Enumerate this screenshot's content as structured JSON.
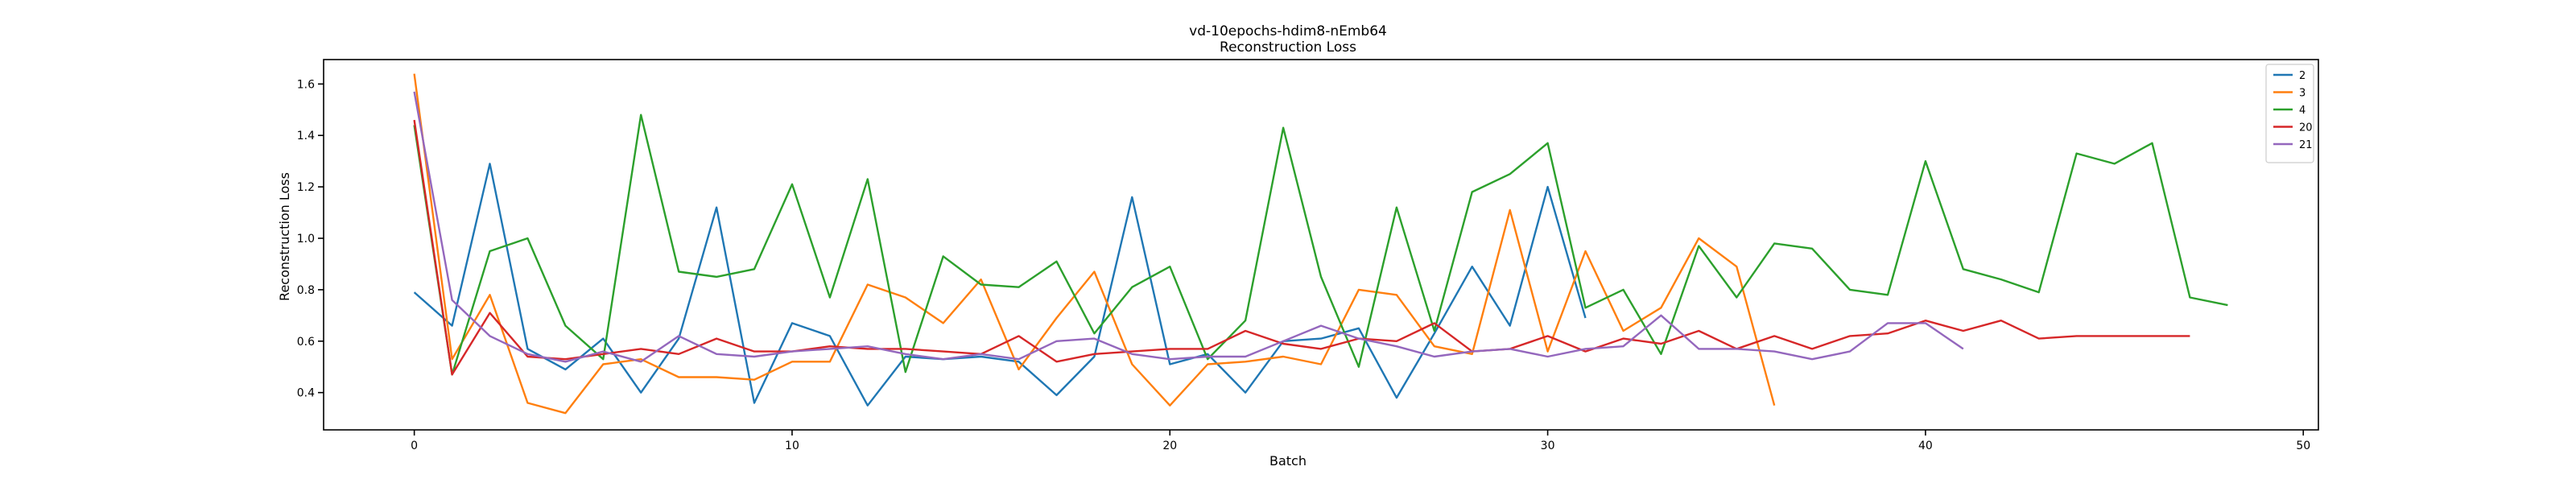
{
  "chart_data": {
    "type": "line",
    "title": "vd-10epochs-hdim8-nEmb64",
    "subtitle": "Reconstruction Loss",
    "xlabel": "Batch",
    "ylabel": "Reconstruction Loss",
    "xlim": [
      -2.4,
      50.4
    ],
    "ylim": [
      0.255,
      1.695
    ],
    "xticks": [
      0,
      10,
      20,
      30,
      40,
      50
    ],
    "yticks": [
      0.4,
      0.6,
      0.8,
      1.0,
      1.2,
      1.4,
      1.6
    ],
    "grid": false,
    "legend_position": "top-right",
    "series": [
      {
        "name": "2",
        "color": "#1f77b4",
        "values": [
          0.79,
          0.66,
          1.29,
          0.57,
          0.49,
          0.61,
          0.4,
          0.61,
          1.12,
          0.36,
          0.67,
          0.62,
          0.35,
          0.54,
          0.53,
          0.54,
          0.52,
          0.39,
          0.54,
          1.16,
          0.51,
          0.55,
          0.4,
          0.6,
          0.61,
          0.65,
          0.38,
          0.63,
          0.89,
          0.66,
          1.2,
          0.69
        ]
      },
      {
        "name": "3",
        "color": "#ff7f0e",
        "values": [
          1.64,
          0.53,
          0.78,
          0.36,
          0.32,
          0.51,
          0.53,
          0.46,
          0.46,
          0.45,
          0.52,
          0.52,
          0.82,
          0.77,
          0.67,
          0.84,
          0.49,
          0.69,
          0.87,
          0.51,
          0.35,
          0.51,
          0.52,
          0.54,
          0.51,
          0.8,
          0.78,
          0.58,
          0.55,
          1.11,
          0.56,
          0.95,
          0.64,
          0.73,
          1.0,
          0.89,
          0.35
        ]
      },
      {
        "name": "4",
        "color": "#2ca02c",
        "values": [
          1.44,
          0.47,
          0.95,
          1.0,
          0.66,
          0.53,
          1.48,
          0.87,
          0.85,
          0.88,
          1.21,
          0.77,
          1.23,
          0.48,
          0.93,
          0.82,
          0.81,
          0.91,
          0.63,
          0.81,
          0.89,
          0.53,
          0.68,
          1.43,
          0.85,
          0.5,
          1.12,
          0.64,
          1.18,
          1.25,
          1.37,
          0.73,
          0.8,
          0.55,
          0.97,
          0.77,
          0.98,
          0.96,
          0.8,
          0.78,
          1.3,
          0.88,
          0.84,
          0.79,
          1.33,
          1.29,
          1.37,
          0.77,
          0.74
        ]
      },
      {
        "name": "20",
        "color": "#d62728",
        "values": [
          1.46,
          0.47,
          0.71,
          0.54,
          0.53,
          0.55,
          0.57,
          0.55,
          0.61,
          0.56,
          0.56,
          0.58,
          0.57,
          0.57,
          0.56,
          0.55,
          0.62,
          0.52,
          0.55,
          0.56,
          0.57,
          0.57,
          0.64,
          0.59,
          0.57,
          0.61,
          0.6,
          0.67,
          0.56,
          0.57,
          0.62,
          0.56,
          0.61,
          0.59,
          0.64,
          0.57,
          0.62,
          0.57,
          0.62,
          0.63,
          0.68,
          0.64,
          0.68,
          0.61,
          0.62,
          0.62,
          0.62,
          0.62
        ]
      },
      {
        "name": "21",
        "color": "#9467bd",
        "values": [
          1.57,
          0.76,
          0.62,
          0.55,
          0.52,
          0.56,
          0.52,
          0.62,
          0.55,
          0.54,
          0.56,
          0.57,
          0.58,
          0.55,
          0.53,
          0.55,
          0.53,
          0.6,
          0.61,
          0.55,
          0.53,
          0.54,
          0.54,
          0.6,
          0.66,
          0.61,
          0.58,
          0.54,
          0.56,
          0.57,
          0.54,
          0.57,
          0.58,
          0.7,
          0.57,
          0.57,
          0.56,
          0.53,
          0.56,
          0.67,
          0.67,
          0.57
        ]
      }
    ]
  }
}
